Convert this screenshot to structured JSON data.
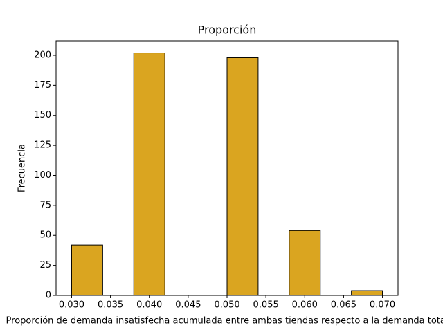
{
  "chart_data": {
    "type": "histogram",
    "title": "Proporción",
    "xlabel": "Proporción de demanda insatisfecha acumulada entre ambas tiendas respecto a la demanda total",
    "ylabel": "Frecuencia",
    "bins": [
      0.03,
      0.034,
      0.038,
      0.042,
      0.046,
      0.05,
      0.054,
      0.058,
      0.062,
      0.066,
      0.07
    ],
    "values": [
      42,
      0,
      202,
      0,
      0,
      198,
      0,
      54,
      0,
      4
    ],
    "color": "#daa520",
    "edgecolor": "#000000",
    "xlim": [
      0.028,
      0.072
    ],
    "xticks": [
      {
        "value": 0.03,
        "label": "0.030"
      },
      {
        "value": 0.035,
        "label": "0.035"
      },
      {
        "value": 0.04,
        "label": "0.040"
      },
      {
        "value": 0.045,
        "label": "0.045"
      },
      {
        "value": 0.05,
        "label": "0.050"
      },
      {
        "value": 0.055,
        "label": "0.055"
      },
      {
        "value": 0.06,
        "label": "0.060"
      },
      {
        "value": 0.065,
        "label": "0.065"
      },
      {
        "value": 0.07,
        "label": "0.070"
      }
    ],
    "ylim": [
      0,
      212.1
    ],
    "yticks": [
      0,
      25,
      50,
      75,
      100,
      125,
      150,
      175,
      200
    ],
    "grid": false
  }
}
